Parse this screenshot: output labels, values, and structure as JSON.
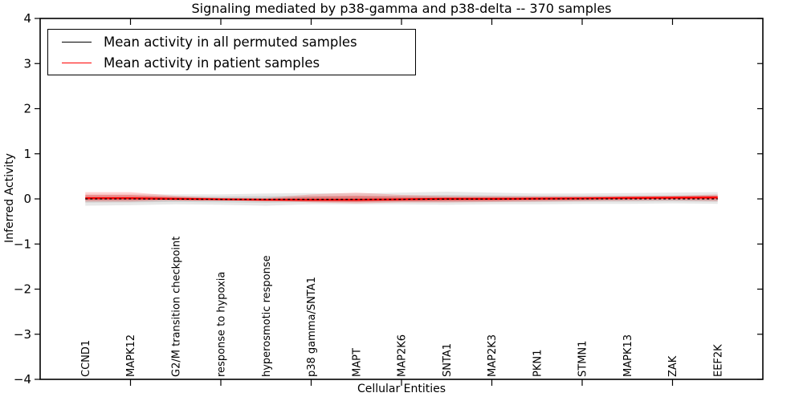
{
  "chart_data": {
    "type": "line",
    "title": "Signaling mediated by p38-gamma and p38-delta -- 370 samples",
    "xlabel": "Cellular Entities",
    "ylabel": "Inferred Activity",
    "xlim": [
      0,
      16
    ],
    "ylim": [
      -4,
      4
    ],
    "grid": false,
    "yticks": {
      "values": [
        4,
        3,
        2,
        1,
        0,
        -1,
        -2,
        -3,
        -4
      ],
      "labels": [
        "4",
        "3",
        "2",
        "1",
        "0",
        "−1",
        "−2",
        "−3",
        "−4"
      ]
    },
    "xtick_values": [
      2,
      4,
      6,
      8,
      10,
      12,
      14
    ],
    "categories": [
      "CCND1",
      "MAPK12",
      "G2/M transition checkpoint",
      "response to hypoxia",
      "hyperosmotic response",
      "p38 gamma/SNTA1",
      "MAPT",
      "MAP2K6",
      "SNTA1",
      "MAP2K3",
      "PKN1",
      "STMN1",
      "MAPK13",
      "ZAK",
      "EEF2K"
    ],
    "x": [
      1,
      2,
      3,
      4,
      5,
      6,
      7,
      8,
      9,
      10,
      11,
      12,
      13,
      14,
      15
    ],
    "series": [
      {
        "name": "Mean activity in all permuted samples",
        "color": "#000000",
        "style": "dashed",
        "values": [
          0,
          0,
          -0.005,
          -0.01,
          -0.01,
          -0.01,
          -0.01,
          -0.01,
          -0.005,
          -0.005,
          0,
          0,
          0,
          0,
          0
        ]
      },
      {
        "name": "Mean activity in patient samples",
        "color": "#ff0000",
        "style": "solid",
        "values": [
          0.015,
          0.015,
          0,
          -0.01,
          -0.02,
          -0.02,
          -0.02,
          -0.01,
          0,
          0,
          0.005,
          0.01,
          0.02,
          0.025,
          0.03
        ]
      }
    ],
    "bands": [
      {
        "name": "permuted-samples-range",
        "color": "#000000",
        "outer_alpha": 0.09,
        "inner_alpha": 0.1,
        "upper": [
          0.1,
          0.1,
          0.1,
          0.1,
          0.12,
          0.13,
          0.12,
          0.14,
          0.16,
          0.14,
          0.12,
          0.12,
          0.13,
          0.14,
          0.15
        ],
        "lower": [
          -0.15,
          -0.14,
          -0.12,
          -0.13,
          -0.15,
          -0.12,
          -0.12,
          -0.12,
          -0.13,
          -0.12,
          -0.12,
          -0.11,
          -0.11,
          -0.1,
          -0.11
        ]
      },
      {
        "name": "patient-samples-range",
        "color": "#ff0000",
        "outer_alpha": 0.18,
        "inner_alpha": 0.24,
        "upper": [
          0.15,
          0.15,
          0.07,
          0.02,
          0.02,
          0.1,
          0.14,
          0.09,
          0.06,
          0.06,
          0.06,
          0.06,
          0.065,
          0.07,
          0.1
        ],
        "lower": [
          -0.06,
          -0.06,
          -0.03,
          -0.03,
          -0.04,
          -0.08,
          -0.1,
          -0.08,
          -0.08,
          -0.07,
          -0.06,
          -0.05,
          -0.04,
          -0.03,
          -0.05
        ]
      }
    ],
    "legend": {
      "position": "upper left",
      "entries": [
        {
          "label": "Mean activity in all permuted samples",
          "color": "#000000"
        },
        {
          "label": "Mean activity in patient samples",
          "color": "#ff0000"
        }
      ]
    }
  }
}
